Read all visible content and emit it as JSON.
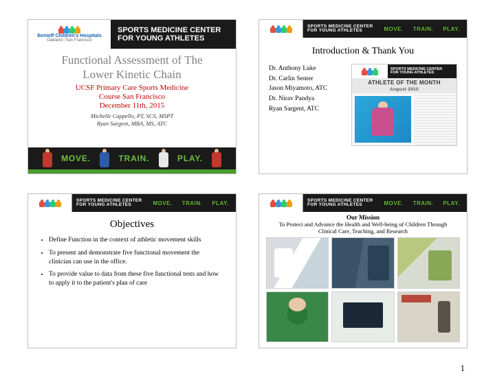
{
  "page_number": "1",
  "org": {
    "hospital": "Benioff Children's Hospitals",
    "locations": "Oakland | San Francisco",
    "center_line1": "SPORTS MEDICINE CENTER",
    "center_line2": "FOR YOUNG ATHLETES",
    "tagline_move": "MOVE.",
    "tagline_train": "TRAIN.",
    "tagline_play": "PLAY."
  },
  "slide1": {
    "title_line1": "Functional Assessment of The",
    "title_line2": "Lower Kinetic Chain",
    "sub_line1": "UCSF Primary Care Sports Medicine",
    "sub_line2": "Course San Francisco",
    "sub_line3": "December 11th, 2015",
    "author1": "Michelle Cappello, PT, SCS, MSPT",
    "author2": "Ryan Sargent, MBA, MS, ATC"
  },
  "slide2": {
    "title": "Introduction & Thank You",
    "names": [
      "Dr. Anthony Luke",
      "Dr. Carlin Senter",
      "Jason Miyamoto, ATC",
      "Dr. Nirav Pandya",
      "Ryan Sargent, ATC"
    ],
    "aotm_label": "ATHLETE OF THE MONTH",
    "aotm_date": "August 2015"
  },
  "slide3": {
    "title": "Objectives",
    "bullets": [
      "Define Function in the context of athletic movement skills",
      "To present and demonstrate five functional movement the clinician can use in the office.",
      "To provide value to data from these five functional tests and how to apply it to the patient's plan of care"
    ]
  },
  "slide4": {
    "mission_label": "Our Mission",
    "mission_text": "To Protect and Advance the Health and Well-being of Children Through Clinical Care, Teaching, and Research"
  },
  "colors": {
    "title_gray": "#808080",
    "accent_red": "#c00000",
    "tagline_green": "#6fbf3f",
    "band_black": "#1a1a1a"
  }
}
